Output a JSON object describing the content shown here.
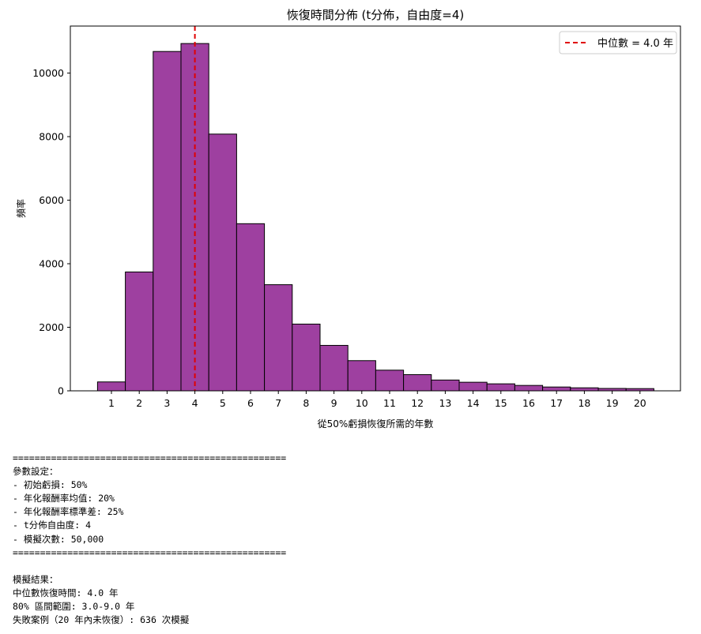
{
  "chart_data": {
    "type": "bar",
    "title": "恢復時間分佈 (t分佈，自由度=4)",
    "xlabel": "從50%虧損恢復所需的年數",
    "ylabel": "頻率",
    "categories": [
      "1",
      "2",
      "3",
      "4",
      "5",
      "6",
      "7",
      "8",
      "9",
      "10",
      "11",
      "12",
      "13",
      "14",
      "15",
      "16",
      "17",
      "18",
      "19",
      "20"
    ],
    "values": [
      280,
      3740,
      10680,
      10930,
      8080,
      5260,
      3340,
      2100,
      1430,
      950,
      650,
      510,
      340,
      270,
      220,
      170,
      120,
      95,
      75,
      70
    ],
    "ylim": [
      0,
      11480
    ],
    "yticks": [
      0,
      2000,
      4000,
      6000,
      8000,
      10000
    ],
    "median_line": {
      "x": 4.0,
      "color": "#e00000",
      "label": "中位數 = 4.0 年"
    },
    "bar_color": "#9e40a0",
    "bar_edge_color": "#000000",
    "grid": false,
    "legend_position": "top-right"
  },
  "console": {
    "lines": [
      "==================================================",
      "參數設定：",
      "- 初始虧損: 50%",
      "- 年化報酬率均值: 20%",
      "- 年化報酬率標準差: 25%",
      "- t分佈自由度: 4",
      "- 模擬次數: 50,000",
      "==================================================",
      "",
      "模擬結果：",
      "中位數恢復時間: 4.0 年",
      "80% 區間範圍: 3.0-9.0 年",
      "失敗案例（20 年內未恢復）: 636 次模擬"
    ]
  }
}
